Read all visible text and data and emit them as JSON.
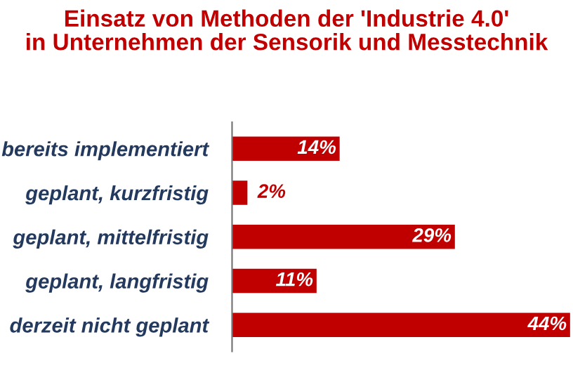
{
  "chart_data": {
    "type": "bar",
    "orientation": "horizontal",
    "title": "Einsatz von Methoden der 'Industrie 4.0'\nin Unternehmen der Sensorik und Messtechnik",
    "categories": [
      "bereits implementiert",
      "geplant, kurzfristig",
      "geplant, mittelfristig",
      "geplant, langfristig",
      "derzeit nicht geplant"
    ],
    "values": [
      14,
      2,
      29,
      11,
      44
    ],
    "value_labels": [
      "14%",
      "2%",
      "29%",
      "11%",
      "44%"
    ],
    "color": "#c00000",
    "grid": false,
    "legend": false
  }
}
